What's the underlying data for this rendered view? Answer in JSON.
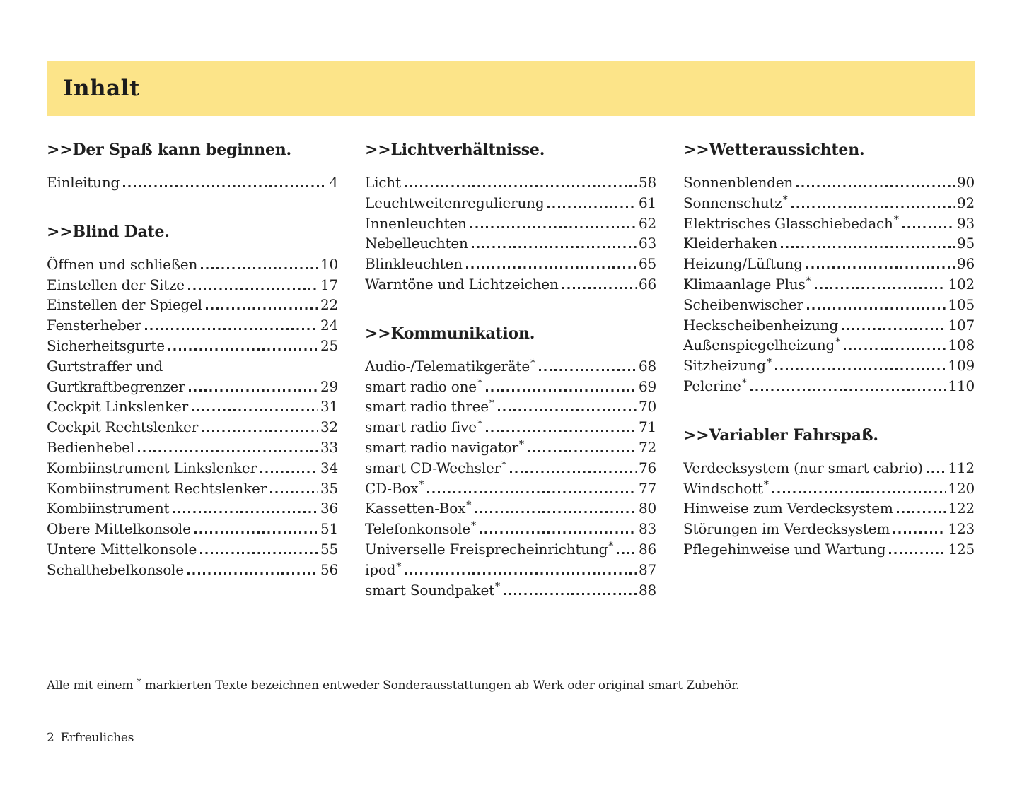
{
  "header": {
    "title": "Inhalt"
  },
  "colors": {
    "band": "#fce489",
    "text": "#1f1f1f"
  },
  "columns": [
    {
      "sections": [
        {
          "heading": ">>Der Spaß kann beginnen.",
          "entries": [
            {
              "label": "Einleitung",
              "page": "4"
            }
          ]
        },
        {
          "heading": ">>Blind Date.",
          "entries": [
            {
              "label": "Öffnen und schließen",
              "page": "10"
            },
            {
              "label": "Einstellen der Sitze",
              "page": "17"
            },
            {
              "label": "Einstellen der Spiegel",
              "page": "22"
            },
            {
              "label": "Fensterheber",
              "page": "24"
            },
            {
              "label": "Sicherheitsgurte",
              "page": "25"
            },
            {
              "label": "Gurtstraffer und",
              "page": null
            },
            {
              "label": "Gurtkraftbegrenzer",
              "page": "29"
            },
            {
              "label": "Cockpit Linkslenker",
              "page": "31"
            },
            {
              "label": "Cockpit Rechtslenker",
              "page": "32"
            },
            {
              "label": "Bedienhebel",
              "page": "33"
            },
            {
              "label": "Kombiinstrument Linkslenker",
              "page": "34"
            },
            {
              "label": "Kombiinstrument Rechtslenker",
              "page": "35"
            },
            {
              "label": "Kombiinstrument",
              "page": "36"
            },
            {
              "label": "Obere Mittelkonsole",
              "page": "51"
            },
            {
              "label": "Untere Mittelkonsole",
              "page": "55"
            },
            {
              "label": "Schalthebelkonsole",
              "page": "56"
            }
          ]
        }
      ]
    },
    {
      "sections": [
        {
          "heading": ">>Lichtverhältnisse.",
          "entries": [
            {
              "label": "Licht",
              "page": "58"
            },
            {
              "label": "Leuchtweitenregulierung",
              "page": "61"
            },
            {
              "label": "Innenleuchten",
              "page": "62"
            },
            {
              "label": "Nebelleuchten",
              "page": "63"
            },
            {
              "label": "Blinkleuchten",
              "page": "65"
            },
            {
              "label": "Warntöne und Lichtzeichen",
              "page": "66"
            }
          ]
        },
        {
          "heading": ">>Kommunikation.",
          "entries": [
            {
              "label": "Audio-/Telematikgeräte",
              "star": true,
              "page": "68"
            },
            {
              "label": "smart radio one",
              "star": true,
              "page": "69"
            },
            {
              "label": "smart radio three",
              "star": true,
              "page": "70"
            },
            {
              "label": "smart radio five",
              "star": true,
              "page": "71"
            },
            {
              "label": "smart radio navigator",
              "star": true,
              "page": "72"
            },
            {
              "label": "smart CD-Wechsler",
              "star": true,
              "page": "76"
            },
            {
              "label": "CD-Box",
              "star": true,
              "page": "77"
            },
            {
              "label": "Kassetten-Box",
              "star": true,
              "page": "80"
            },
            {
              "label": "Telefonkonsole",
              "star": true,
              "page": "83"
            },
            {
              "label": "Universelle Freisprecheinrichtung",
              "star": true,
              "page": "86"
            },
            {
              "label": "ipod",
              "star": true,
              "page": "87"
            },
            {
              "label": "smart Soundpaket",
              "star": true,
              "page": "88"
            }
          ]
        }
      ]
    },
    {
      "sections": [
        {
          "heading": ">>Wetteraussichten.",
          "entries": [
            {
              "label": "Sonnenblenden",
              "page": "90"
            },
            {
              "label": "Sonnenschutz",
              "star": true,
              "page": "92"
            },
            {
              "label": "Elektrisches Glasschiebedach",
              "star": true,
              "page": "93"
            },
            {
              "label": "Kleiderhaken",
              "page": "95"
            },
            {
              "label": "Heizung/Lüftung",
              "page": "96"
            },
            {
              "label": "Klimaanlage Plus",
              "star": true,
              "page": "102"
            },
            {
              "label": "Scheibenwischer",
              "page": "105"
            },
            {
              "label": "Heckscheibenheizung",
              "page": "107"
            },
            {
              "label": "Außenspiegelheizung",
              "star": true,
              "page": "108"
            },
            {
              "label": "Sitzheizung",
              "star": true,
              "page": "109"
            },
            {
              "label": "Pelerine",
              "star": true,
              "page": "110"
            }
          ]
        },
        {
          "heading": ">>Variabler Fahrspaß.",
          "entries": [
            {
              "label": "Verdecksystem (nur smart cabrio)",
              "page": "112"
            },
            {
              "label": "Windschott",
              "star": true,
              "page": "120"
            },
            {
              "label": "Hinweise zum Verdecksystem",
              "page": "122"
            },
            {
              "label": "Störungen im Verdecksystem",
              "page": "123"
            },
            {
              "label": "Pflegehinweise und Wartung",
              "page": "125"
            }
          ]
        }
      ]
    }
  ],
  "footnote": {
    "pre": "Alle mit einem",
    "star": "*",
    "post": "markierten Texte bezeichnen entweder Sonderausstattungen ab Werk oder original smart Zubehör."
  },
  "footer": {
    "page_number": "2",
    "chapter": "Erfreuliches"
  }
}
